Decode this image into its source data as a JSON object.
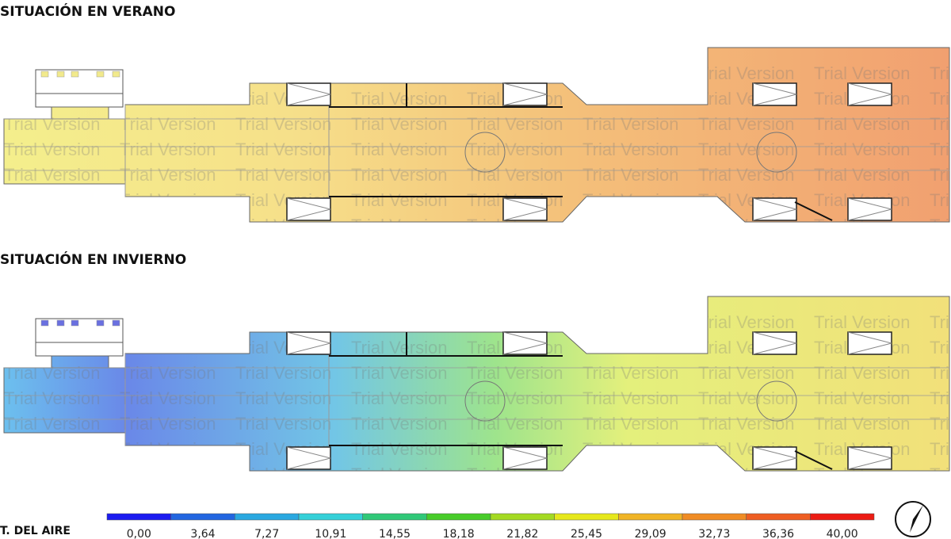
{
  "views": [
    {
      "title": "SITUACIÓN EN VERANO"
    },
    {
      "title": "SITUACIÓN EN INVIERNO"
    }
  ],
  "watermark": "Trial Version",
  "legend": {
    "label": "T. DEL AIRE",
    "ticks": [
      "0,00",
      "3,64",
      "7,27",
      "10,91",
      "14,55",
      "18,18",
      "21,82",
      "25,45",
      "29,09",
      "32,73",
      "36,36",
      "40,00"
    ]
  }
}
